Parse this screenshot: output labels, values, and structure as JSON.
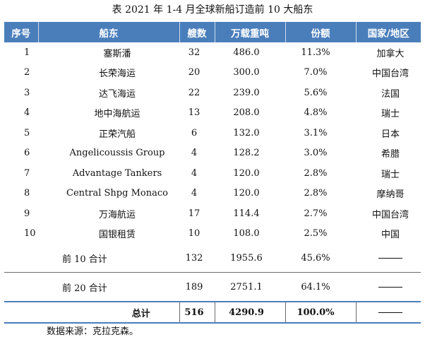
{
  "title": "表   2021 年 1-4 月全球新船订造前 10 大船东",
  "headers": [
    "序号",
    "船东",
    "艘数",
    "万载重吨",
    "份额",
    "国家/地区"
  ],
  "rows": [
    [
      "1",
      "塞斯潘",
      "32",
      "486.0",
      "11.3%",
      "加拿大"
    ],
    [
      "2",
      "长荣海运",
      "20",
      "300.0",
      "7.0%",
      "中国台湾"
    ],
    [
      "3",
      "达飞海运",
      "22",
      "239.0",
      "5.6%",
      "法国"
    ],
    [
      "4",
      "地中海航运",
      "13",
      "208.0",
      "4.8%",
      "瑞士"
    ],
    [
      "5",
      "正荣汽船",
      "6",
      "132.0",
      "3.1%",
      "日本"
    ],
    [
      "6",
      "Angelicoussis Group",
      "4",
      "128.2",
      "3.0%",
      "希腊"
    ],
    [
      "7",
      "Advantage Tankers",
      "4",
      "120.0",
      "2.8%",
      "瑞士"
    ],
    [
      "8",
      "Central Shpg Monaco",
      "4",
      "120.0",
      "2.8%",
      "摩纳哥"
    ],
    [
      "9",
      "万海航运",
      "17",
      "114.4",
      "2.7%",
      "中国台湾"
    ],
    [
      "10",
      "国银租赁",
      "10",
      "108.0",
      "2.5%",
      "中国"
    ]
  ],
  "summary": [
    {
      "label": "前 10 合计",
      "count": "132",
      "dwt": "1955.6",
      "share": "45.6%"
    },
    {
      "label": "前 20 合计",
      "count": "189",
      "dwt": "2751.1",
      "share": "64.1%"
    }
  ],
  "total": {
    "label": "总计",
    "count": "516",
    "dwt": "4290.9",
    "share": "100.0%"
  },
  "source": "数据来源：克拉克森。"
}
